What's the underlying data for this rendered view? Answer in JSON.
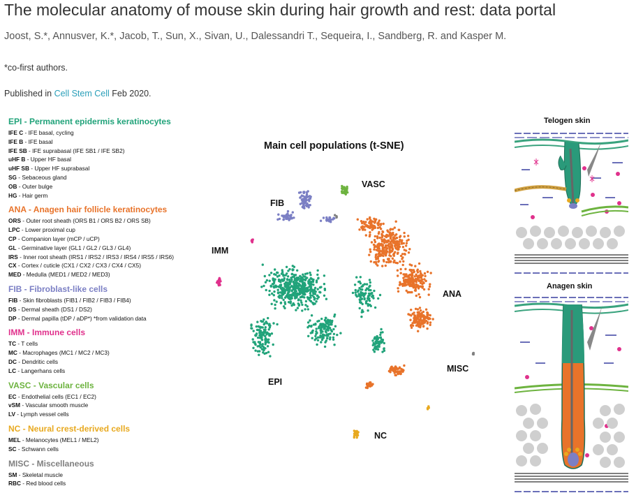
{
  "header": {
    "title": "The molecular anatomy of mouse skin during hair growth and rest: data portal",
    "authors": "Joost, S.*, Annusver, K.*, Jacob, T., Sun, X., Sivan, U., Dalessandri T., Sequeira, I., Sandberg, R. and Kasper M.",
    "cofirst_note": "*co-first authors.",
    "published_prefix": "Published in ",
    "journal_link": "Cell Stem Cell",
    "published_suffix": " Feb 2020."
  },
  "legend": {
    "groups": [
      {
        "heading": "EPI - Permanent epidermis keratinocytes",
        "color": "#21a37a",
        "items": [
          {
            "code": "IFE C",
            "desc": " - IFE basal, cycling"
          },
          {
            "code": "IFE B",
            "desc": " - IFE basal"
          },
          {
            "code": "IFE SB",
            "desc": " - IFE suprabasal (IFE SB1 / IFE SB2)"
          },
          {
            "code": "uHF B",
            "desc": " - Upper HF basal"
          },
          {
            "code": "uHF SB",
            "desc": " - Upper HF suprabasal"
          },
          {
            "code": "SG",
            "desc": " - Sebaceous gland"
          },
          {
            "code": "OB",
            "desc": " - Outer bulge"
          },
          {
            "code": "HG",
            "desc": " - Hair germ"
          }
        ]
      },
      {
        "heading": "ANA - Anagen hair follicle keratinocytes",
        "color": "#e8732a",
        "items": [
          {
            "code": "ORS",
            "desc": " - Outer root sheath (ORS B1 / ORS B2 / ORS SB)"
          },
          {
            "code": "LPC",
            "desc": " - Lower proximal cup"
          },
          {
            "code": "CP",
            "desc": " - Companion layer (mCP / uCP)"
          },
          {
            "code": "GL",
            "desc": " - Germinative layer (GL1 / GL2 / GL3 / GL4)"
          },
          {
            "code": "IRS",
            "desc": " - Inner root sheath (IRS1 / IRS2 / IRS3 / IRS4 / IRS5 / IRS6)"
          },
          {
            "code": "CX",
            "desc": " - Cortex / cuticle (CX1 / CX2 / CX3 / CX4 / CX5)"
          },
          {
            "code": "MED",
            "desc": " - Medulla (MED1 / MED2 / MED3)"
          }
        ]
      },
      {
        "heading": "FIB - Fibroblast-like cells",
        "color": "#7b7fc4",
        "items": [
          {
            "code": "FIB",
            "desc": " - Skin fibroblasts (FIB1 / FIB2 / FIB3 / FIB4)"
          },
          {
            "code": "DS",
            "desc": " - Dermal sheath (DS1 / DS2)"
          },
          {
            "code": "DP",
            "desc": " - Dermal papilla (tDP / aDP*) *from validation data"
          }
        ]
      },
      {
        "heading": "IMM - Immune cells",
        "color": "#e0318c",
        "items": [
          {
            "code": "TC",
            "desc": " - T cells"
          },
          {
            "code": "MC",
            "desc": " - Macrophages (MC1 / MC2 / MC3)"
          },
          {
            "code": "DC",
            "desc": " - Dendritic cells"
          },
          {
            "code": "LC",
            "desc": " - Langerhans cells"
          }
        ]
      },
      {
        "heading": "VASC - Vascular cells",
        "color": "#6db33f",
        "items": [
          {
            "code": "EC",
            "desc": " - Endothelial cells (EC1 / EC2)"
          },
          {
            "code": "vSM",
            "desc": " - Vascular smooth muscle"
          },
          {
            "code": "LV",
            "desc": " - Lymph vessel cells"
          }
        ]
      },
      {
        "heading": "NC - Neural crest-derived cells",
        "color": "#e8a91f",
        "items": [
          {
            "code": "MEL",
            "desc": " - Melanocytes (MEL1 / MEL2)"
          },
          {
            "code": "SC",
            "desc": " - Schwann cells"
          }
        ]
      },
      {
        "heading": "MISC - Miscellaneous",
        "color": "#808080",
        "items": [
          {
            "code": "SM",
            "desc": " - Skeletal muscle"
          },
          {
            "code": "RBC",
            "desc": " - Red blood cells"
          }
        ]
      }
    ]
  },
  "tsne": {
    "title": "Main cell populations (t-SNE)",
    "clusters": [
      {
        "label": "EPI",
        "color": "#21a37a"
      },
      {
        "label": "ANA",
        "color": "#e8732a"
      },
      {
        "label": "FIB",
        "color": "#7b7fc4"
      },
      {
        "label": "VASC",
        "color": "#6db33f"
      },
      {
        "label": "IMM",
        "color": "#e0318c"
      },
      {
        "label": "NC",
        "color": "#e8a91f"
      },
      {
        "label": "MISC",
        "color": "#808080"
      }
    ]
  },
  "skin": {
    "telogen_title": "Telogen skin",
    "anagen_title": "Anagen skin"
  }
}
